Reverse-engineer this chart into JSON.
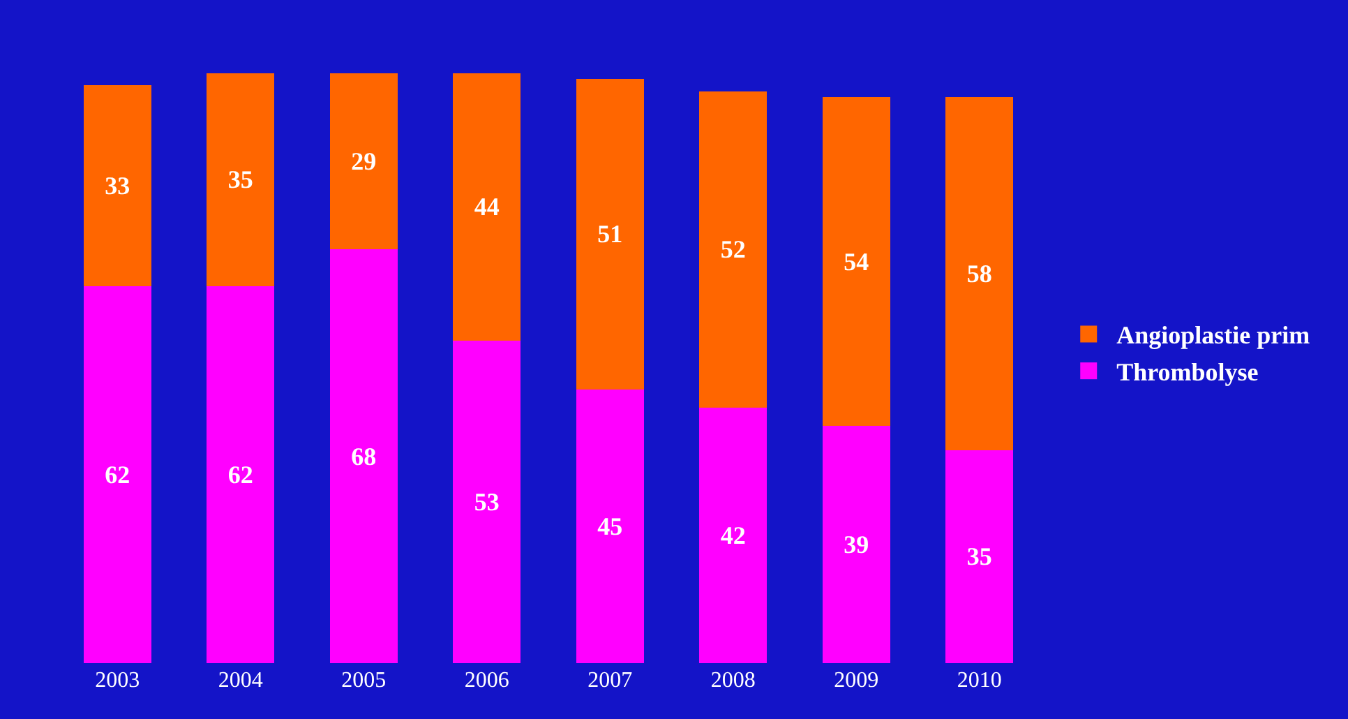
{
  "chart_data": {
    "type": "bar",
    "stacked": true,
    "categories": [
      "2003",
      "2004",
      "2005",
      "2006",
      "2007",
      "2008",
      "2009",
      "2010"
    ],
    "series": [
      {
        "name": "Thrombolyse",
        "color": "#ff00ff",
        "values": [
          62,
          62,
          68,
          53,
          45,
          42,
          39,
          35
        ]
      },
      {
        "name": "Angioplastie prim",
        "color": "#ff6600",
        "values": [
          33,
          35,
          29,
          44,
          51,
          52,
          54,
          58
        ]
      }
    ],
    "data_labels": true,
    "legend": "right",
    "grid": false
  }
}
